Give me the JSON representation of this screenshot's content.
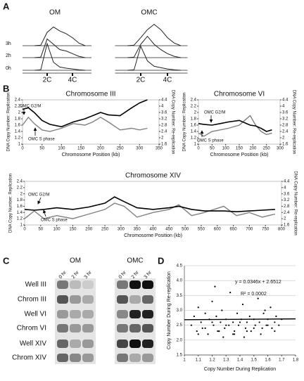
{
  "chart_data": [
    {
      "type": "density",
      "panel_label": "A",
      "title": "OM",
      "x": [
        1,
        1.5,
        2,
        2.5,
        3,
        3.5,
        4,
        4.5,
        5
      ],
      "xlim": [
        0.5,
        5.5
      ],
      "xticks": [
        {
          "value": 2,
          "label": "2C"
        },
        {
          "value": 4,
          "label": "4C"
        }
      ],
      "ylim": [
        0,
        1
      ],
      "series": [
        {
          "name": "3h",
          "color": "#222222",
          "values": [
            0,
            0.02,
            0.5,
            0.7,
            0.55,
            0.45,
            0.3,
            0.1,
            0
          ]
        },
        {
          "name": "2h",
          "color": "#222222",
          "values": [
            0,
            0.02,
            0.7,
            0.5,
            0.3,
            0.25,
            0.15,
            0.05,
            0
          ]
        },
        {
          "name": "0h",
          "color": "#222222",
          "values": [
            0,
            0.02,
            1.0,
            0.3,
            0.12,
            0.08,
            0.05,
            0.02,
            0
          ]
        }
      ]
    },
    {
      "type": "density",
      "title": "OMC",
      "x": [
        1,
        1.5,
        2,
        2.5,
        3,
        3.5,
        4,
        4.5,
        5
      ],
      "xlim": [
        0.5,
        5.5
      ],
      "xticks": [
        {
          "value": 2,
          "label": "2C"
        },
        {
          "value": 4,
          "label": "4C"
        }
      ],
      "ylim": [
        0,
        1
      ],
      "series": [
        {
          "color": "#222222",
          "values": [
            0,
            0.02,
            0.3,
            0.6,
            0.8,
            0.6,
            0.3,
            0.1,
            0
          ]
        },
        {
          "color": "#222222",
          "values": [
            0,
            0.02,
            0.5,
            0.8,
            0.5,
            0.3,
            0.15,
            0.05,
            0
          ]
        },
        {
          "color": "#222222",
          "values": [
            0,
            0.02,
            0.9,
            0.35,
            0.15,
            0.1,
            0.05,
            0.02,
            0
          ]
        }
      ]
    },
    {
      "type": "dual",
      "panel_label": "B",
      "title": "Chromosome III",
      "xlabel": "Chromosome Position (kb)",
      "ylabel": "DNA Copy Number: Replication",
      "y2label": "DNA Copy Number: Re-replication",
      "x": [
        0,
        15,
        30,
        50,
        70,
        100,
        130,
        160,
        180,
        200,
        220,
        250,
        280,
        300,
        320
      ],
      "xlim": [
        0,
        350
      ],
      "xticks": [
        0,
        50,
        100,
        150,
        200,
        250,
        300,
        350
      ],
      "ylim": [
        1,
        2.4
      ],
      "yticks": [
        1,
        1.2,
        1.4,
        1.6,
        1.8,
        2,
        2.2,
        2.4
      ],
      "y2lim": [
        1.6,
        4.4
      ],
      "y2ticks": [
        1.6,
        2,
        2.4,
        2.8,
        3.2,
        3.6,
        4,
        4.4
      ],
      "series": [
        {
          "name": "OMC S phase",
          "color": "#808080",
          "values": [
            1.6,
            1.85,
            1.65,
            1.45,
            1.4,
            1.5,
            1.65,
            1.6,
            1.7,
            1.85,
            1.7,
            1.45,
            1.5,
            1.45,
            1.5
          ]
        },
        {
          "name": "OMC G2/M",
          "color": "#000000",
          "axis": "y2",
          "values": [
            3.8,
            3.9,
            3.6,
            3.1,
            2.85,
            2.7,
            3.0,
            3.2,
            3.4,
            3.6,
            3.45,
            3.4,
            3.9,
            4.2,
            4.4
          ]
        }
      ]
    },
    {
      "type": "dual",
      "title": "Chromosome VI",
      "xlabel": "Chromosome Position (kb)",
      "ylabel": "DNA Copy Number: Replication",
      "y2label": "DNA Copy Number: Re-replication",
      "x": [
        0,
        20,
        50,
        80,
        110,
        150,
        170,
        190,
        210,
        230,
        250,
        270
      ],
      "xlim": [
        0,
        300
      ],
      "xticks": [
        0,
        50,
        100,
        150,
        200,
        250,
        300
      ],
      "ylim": [
        1,
        2.4
      ],
      "yticks": [
        1,
        1.2,
        1.4,
        1.6,
        1.8,
        2,
        2.2,
        2.4
      ],
      "y2lim": [
        1.6,
        4.4
      ],
      "y2ticks": [
        1.6,
        2,
        2.4,
        2.8,
        3.2,
        3.6,
        4,
        4.4
      ],
      "series": [
        {
          "name": "OMC S phase",
          "color": "#808080",
          "values": [
            1.35,
            1.25,
            1.4,
            1.45,
            1.5,
            1.6,
            1.75,
            1.9,
            1.6,
            1.4,
            1.3,
            1.35
          ]
        },
        {
          "name": "OMC G2/M",
          "color": "#000000",
          "axis": "y2",
          "values": [
            2.9,
            2.85,
            2.8,
            2.9,
            3.0,
            3.1,
            2.95,
            2.8,
            2.75,
            2.6,
            2.4,
            2.5
          ]
        }
      ]
    },
    {
      "type": "dual",
      "title": "Chromosome XIV",
      "xlabel": "Chromosome Position (kb)",
      "ylabel": "DNA Copy Number: Replication",
      "y2label": "DNA Copy Number: Re-replication",
      "x": [
        0,
        30,
        60,
        100,
        150,
        200,
        250,
        280,
        310,
        350,
        400,
        450,
        480,
        520,
        560,
        620,
        660,
        700,
        740,
        780
      ],
      "xlim": [
        0,
        800
      ],
      "xticks": [
        0,
        50,
        100,
        150,
        200,
        250,
        300,
        350,
        400,
        450,
        500,
        550,
        600,
        650,
        700,
        750,
        800
      ],
      "ylim": [
        1,
        2.4
      ],
      "yticks": [
        1,
        1.2,
        1.4,
        1.6,
        1.8,
        2,
        2.2,
        2.4
      ],
      "y2lim": [
        1.6,
        4.4
      ],
      "y2ticks": [
        1.6,
        2,
        2.4,
        2.8,
        3.2,
        3.6,
        4,
        4.4
      ],
      "series": [
        {
          "name": "OMC S phase",
          "color": "#808080",
          "values": [
            1.2,
            1.45,
            1.2,
            1.3,
            1.2,
            1.35,
            1.5,
            1.7,
            1.6,
            1.25,
            1.4,
            1.5,
            1.65,
            1.3,
            1.4,
            1.6,
            1.3,
            1.4,
            1.25,
            1.35
          ]
        },
        {
          "name": "OMC G2/M",
          "color": "#000000",
          "axis": "y2",
          "values": [
            2.6,
            2.55,
            2.6,
            2.7,
            2.6,
            2.75,
            3.0,
            3.4,
            3.1,
            2.7,
            2.6,
            2.7,
            2.8,
            2.6,
            2.5,
            2.5,
            2.45,
            2.5,
            2.55,
            2.6
          ]
        }
      ]
    },
    {
      "type": "scatter",
      "panel_label": "D",
      "xlabel": "Copy Number During Replication",
      "ylabel": "Copy Number During Re-replication",
      "xlim": [
        1,
        1.8
      ],
      "xticks": [
        1,
        1.1,
        1.2,
        1.3,
        1.4,
        1.5,
        1.6,
        1.7,
        1.8
      ],
      "ylim": [
        1.5,
        4.5
      ],
      "yticks": [
        1.5,
        {
          "value": 2,
          "label": "2.0"
        },
        2.5,
        {
          "value": 3,
          "label": "3.0"
        },
        3.5,
        {
          "value": 4,
          "label": "4.0"
        },
        4.5
      ],
      "grid": true,
      "color": "#000000",
      "x": [
        1.05,
        1.07,
        1.09,
        1.1,
        1.12,
        1.13,
        1.15,
        1.17,
        1.18,
        1.2,
        1.21,
        1.23,
        1.24,
        1.26,
        1.27,
        1.29,
        1.3,
        1.32,
        1.33,
        1.35,
        1.36,
        1.38,
        1.39,
        1.41,
        1.42,
        1.44,
        1.45,
        1.47,
        1.48,
        1.5,
        1.51,
        1.53,
        1.54,
        1.56,
        1.57,
        1.59,
        1.6,
        1.62,
        1.63,
        1.65,
        1.66,
        1.68,
        1.7,
        1.1,
        1.15,
        1.2,
        1.25,
        1.3,
        1.35,
        1.4,
        1.45,
        1.5,
        1.55,
        1.6,
        1.65,
        1.22,
        1.28,
        1.36,
        1.43,
        1.58
      ],
      "values": [
        2.5,
        2.8,
        2.3,
        3.1,
        2.6,
        2.4,
        2.9,
        2.2,
        2.7,
        3.3,
        2.5,
        2.8,
        2.3,
        2.6,
        3.0,
        2.4,
        2.7,
        2.5,
        3.6,
        2.6,
        2.3,
        2.9,
        2.5,
        2.7,
        3.2,
        2.4,
        2.6,
        2.8,
        2.3,
        2.7,
        2.5,
        3.4,
        2.6,
        2.4,
        2.9,
        2.5,
        2.7,
        3.1,
        2.4,
        2.6,
        2.8,
        2.5,
        2.7,
        2.2,
        2.4,
        2.6,
        2.3,
        2.5,
        2.2,
        2.6,
        2.3,
        2.4,
        2.2,
        2.5,
        2.3,
        3.8,
        2.1,
        2.2,
        2.1,
        3.0
      ],
      "trendline": {
        "label": "y = 0.0346x + 2.6512",
        "slope": 0.0346,
        "intercept": 2.6512,
        "r2_label": "R² = 0.0002"
      }
    }
  ],
  "blot": {
    "panel_label": "C",
    "groups": [
      "OM",
      "OMC"
    ],
    "lanes": [
      "0 hr",
      "2 hr",
      "3 hr"
    ],
    "rows": [
      "Well III",
      "Chrom III",
      "Well VI",
      "Chrom VI",
      "Well XIV",
      "Chrom XIV"
    ]
  }
}
